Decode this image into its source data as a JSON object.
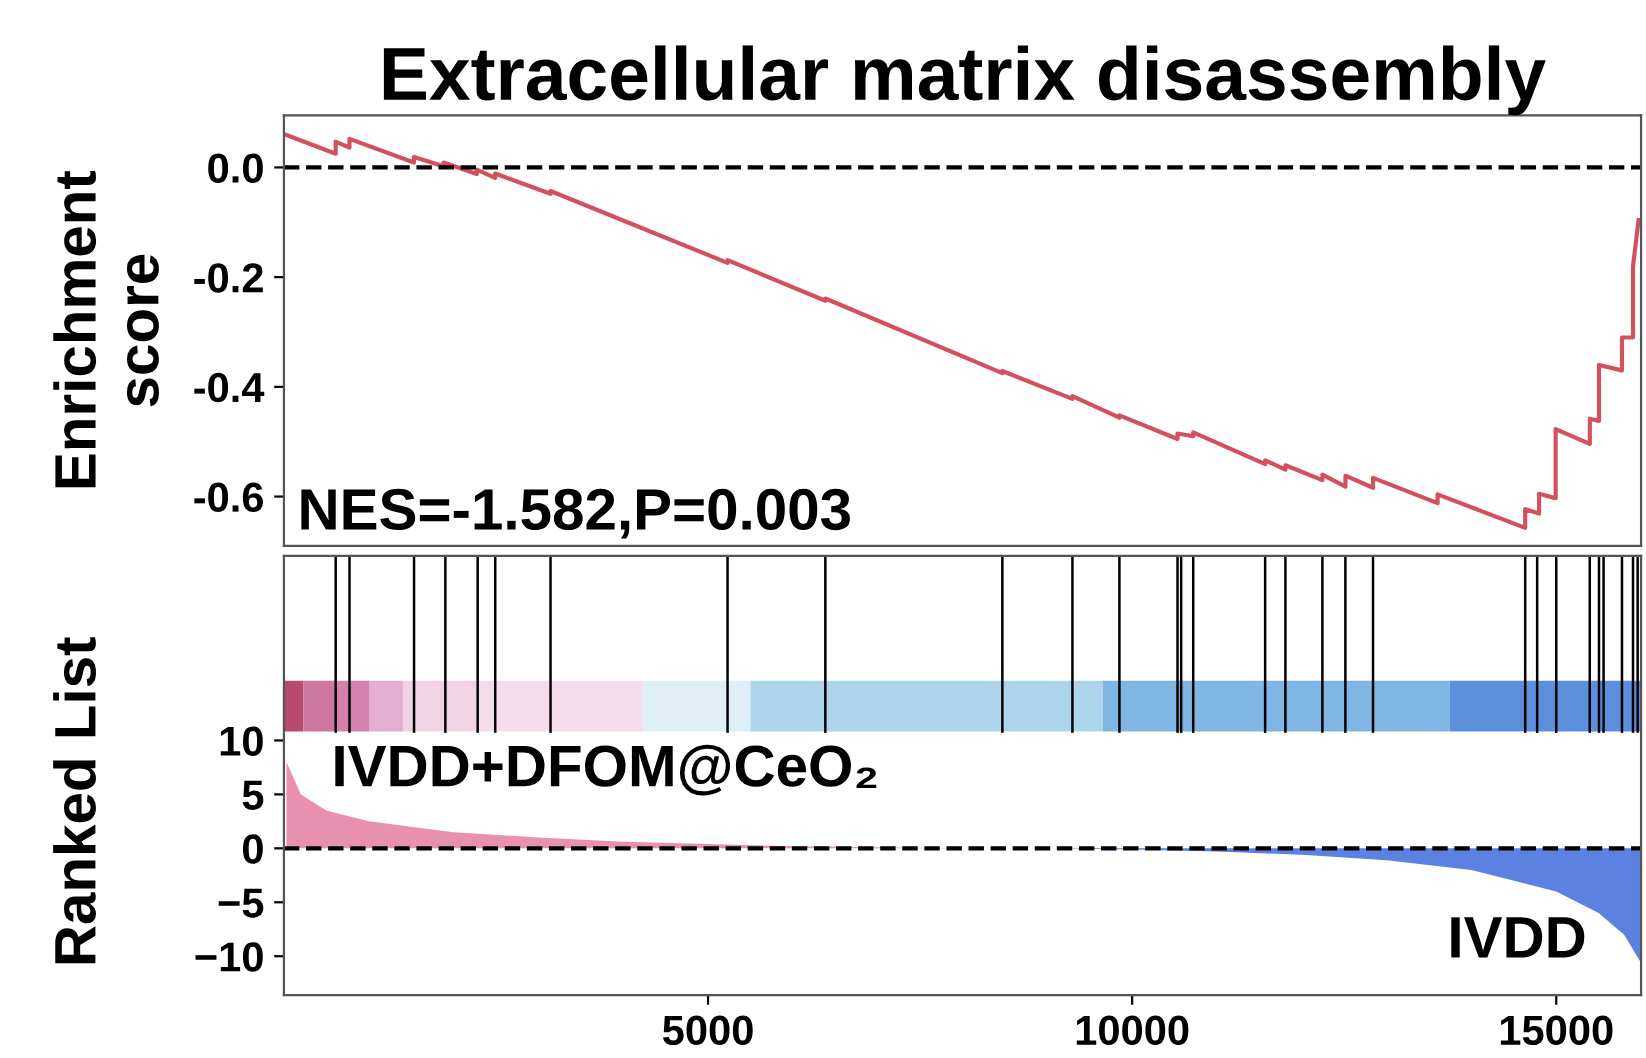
{
  "chart_data": [
    {
      "type": "line",
      "title": "Extracellular matrix disassembly",
      "ylabel": "Enrichment\nscore",
      "annotations": [
        "NES=-1.582,P=0.003"
      ],
      "xlim": [
        0,
        16000
      ],
      "ylim": [
        -0.69,
        0.095
      ],
      "yticks": [
        {
          "value": 0,
          "label": "0.0"
        },
        {
          "value": -0.2,
          "label": "-0.2"
        },
        {
          "value": -0.4,
          "label": "-0.4"
        },
        {
          "value": -0.6,
          "label": "-0.6"
        }
      ],
      "tick_labels": "y",
      "line_style": "solid",
      "ref_lines": [
        {
          "axis": "y",
          "value": 0,
          "line_style": "dashed",
          "color": "#000000"
        }
      ],
      "series": [
        {
          "color": "#d4505e",
          "x": [
            30,
            610,
            610,
            773,
            773,
            1533,
            1533,
            1882,
            1882,
            2273,
            2273,
            2490,
            2490,
            3143,
            3143,
            5230,
            5230,
            6383,
            6383,
            8470,
            8470,
            9296,
            9296,
            9850,
            9850,
            10535,
            10535,
            10720,
            10720,
            11569,
            11569,
            11807,
            11807,
            12243,
            12243,
            12515,
            12515,
            12840,
            12840,
            13601,
            13601,
            14634,
            14634,
            14797,
            14797,
            14993,
            14993,
            15396,
            15396,
            15504,
            15504,
            15775,
            15775,
            15905,
            15905,
            15971
          ],
          "values": [
            0.059,
            0.025,
            0.047,
            0.036,
            0.052,
            0.009,
            0.019,
            0.002,
            0.009,
            -0.012,
            -0.004,
            -0.019,
            -0.011,
            -0.048,
            -0.043,
            -0.174,
            -0.169,
            -0.243,
            -0.239,
            -0.375,
            -0.371,
            -0.422,
            -0.417,
            -0.456,
            -0.452,
            -0.495,
            -0.485,
            -0.49,
            -0.483,
            -0.541,
            -0.534,
            -0.551,
            -0.543,
            -0.57,
            -0.56,
            -0.582,
            -0.562,
            -0.584,
            -0.566,
            -0.612,
            -0.596,
            -0.657,
            -0.623,
            -0.631,
            -0.595,
            -0.603,
            -0.477,
            -0.504,
            -0.458,
            -0.462,
            -0.36,
            -0.37,
            -0.31,
            -0.31,
            -0.18,
            -0.096
          ]
        }
      ]
    },
    {
      "type": "area",
      "ylabel": "Ranked List",
      "annotations": [
        "IVDD+DFOM@CeO₂",
        "IVDD"
      ],
      "xlim": [
        0,
        16000
      ],
      "xticks": [
        5000,
        10000,
        15000
      ],
      "ylim": [
        -13.6,
        27.1
      ],
      "yticks": [
        10,
        5,
        0,
        {
          "value": -5,
          "label": "−5"
        },
        {
          "value": -10,
          "label": "−10"
        }
      ],
      "ref_lines": [
        {
          "axis": "y",
          "value": 0,
          "line_style": "dashed",
          "color": "#000000"
        },
        {
          "axis": "x",
          "value": 610
        },
        {
          "axis": "x",
          "value": 773
        },
        {
          "axis": "x",
          "value": 1534
        },
        {
          "axis": "x",
          "value": 1903
        },
        {
          "axis": "x",
          "value": 2284
        },
        {
          "axis": "x",
          "value": 2491
        },
        {
          "axis": "x",
          "value": 3143
        },
        {
          "axis": "x",
          "value": 5230
        },
        {
          "axis": "x",
          "value": 6383
        },
        {
          "axis": "x",
          "value": 8470
        },
        {
          "axis": "x",
          "value": 9296
        },
        {
          "axis": "x",
          "value": 9850
        },
        {
          "axis": "x",
          "value": 10535
        },
        {
          "axis": "x",
          "value": 10578
        },
        {
          "axis": "x",
          "value": 10720
        },
        {
          "axis": "x",
          "value": 11568
        },
        {
          "axis": "x",
          "value": 11807
        },
        {
          "axis": "x",
          "value": 12243
        },
        {
          "axis": "x",
          "value": 12514
        },
        {
          "axis": "x",
          "value": 12840
        },
        {
          "axis": "x",
          "value": 14634
        },
        {
          "axis": "x",
          "value": 14775
        },
        {
          "axis": "x",
          "value": 15000
        },
        {
          "axis": "x",
          "value": 15395
        },
        {
          "axis": "x",
          "value": 15504
        },
        {
          "axis": "x",
          "value": 15558
        },
        {
          "axis": "x",
          "value": 15775
        },
        {
          "axis": "x",
          "value": 15905
        },
        {
          "axis": "x",
          "value": 15960
        }
      ],
      "bands": [
        {
          "axis": "x",
          "from": 0,
          "to": 229,
          "color": "#b84a70"
        },
        {
          "axis": "x",
          "from": 229,
          "to": 610,
          "color": "#cc77a0"
        },
        {
          "axis": "x",
          "from": 610,
          "to": 1011,
          "color": "#d282ac"
        },
        {
          "axis": "x",
          "from": 1011,
          "to": 1403,
          "color": "#e3afd0"
        },
        {
          "axis": "x",
          "from": 1403,
          "to": 2294,
          "color": "#f2d3e4"
        },
        {
          "axis": "x",
          "from": 2294,
          "to": 4230,
          "color": "#f5dcea"
        },
        {
          "axis": "x",
          "from": 4230,
          "to": 5501,
          "color": "#e0eff6"
        },
        {
          "axis": "x",
          "from": 5501,
          "to": 9654,
          "color": "#acd5ec"
        },
        {
          "axis": "x",
          "from": 9654,
          "to": 13742,
          "color": "#7fb6e3"
        },
        {
          "axis": "x",
          "from": 13742,
          "to": 16000,
          "color": "#5b8fdb"
        }
      ],
      "series": [
        {
          "color": "#e890b0",
          "x": [
            30,
            200,
            500,
            1000,
            2000,
            3000,
            4000,
            5000,
            6000,
            7000,
            8000,
            9000
          ],
          "values": [
            8,
            5,
            3.5,
            2.5,
            1.5,
            1,
            0.6,
            0.4,
            0.2,
            0.1,
            0,
            0
          ]
        },
        {
          "color": "#5b82e0",
          "x": [
            9000,
            10000,
            11000,
            12000,
            13000,
            14000,
            15000,
            15500,
            15800,
            15990
          ],
          "values": [
            0,
            -0.1,
            -0.3,
            -0.6,
            -1.1,
            -2,
            -4,
            -6,
            -8,
            -10.5
          ]
        }
      ]
    }
  ]
}
